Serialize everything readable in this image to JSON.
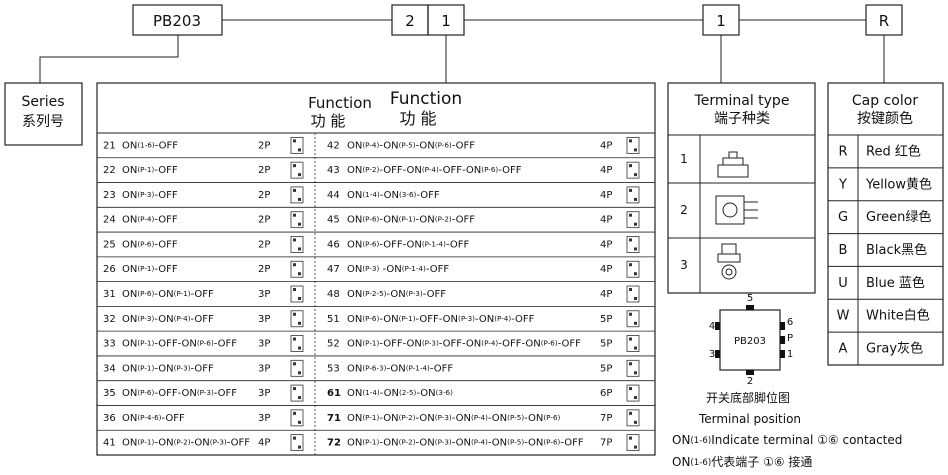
{
  "code_boxes": [
    "PB203",
    "2",
    "1",
    "1",
    "R"
  ],
  "series": {
    "en": "Series",
    "zh": "系列号"
  },
  "function_table": {
    "header": [
      {
        "en": "Function",
        "zh": "功  能"
      },
      {
        "en": "Function",
        "zh": "功  能"
      }
    ],
    "left_rows": [
      [
        "21",
        "ON(1-6)-OFF",
        "2P"
      ],
      [
        "22",
        "ON(P-1)-OFF",
        "2P"
      ],
      [
        "23",
        "ON(P-3)-OFF",
        "2P"
      ],
      [
        "24",
        "ON(P-4)-OFF",
        "2P"
      ],
      [
        "25",
        "ON(P-6)-OFF",
        "2P"
      ],
      [
        "26",
        "ON(P-1)-OFF",
        "2P"
      ],
      [
        "31",
        "ON(P-6)-ON(P-1)-OFF",
        "3P"
      ],
      [
        "32",
        "ON(P-3)-ON(P-4)-OFF",
        "3P"
      ],
      [
        "33",
        "ON(P-1)-OFF-ON(P-6)-OFF",
        "3P"
      ],
      [
        "34",
        "ON(P-1)-ON(P-3)-OFF",
        "3P"
      ],
      [
        "35",
        "ON(P-6)-OFF-ON(P-3)-OFF",
        "3P"
      ],
      [
        "36",
        "ON(P-4-6)-OFF",
        "3P"
      ],
      [
        "41",
        "ON(P-1)-ON(P-2)-ON(P-3)-OFF",
        "4P"
      ]
    ],
    "right_rows": [
      [
        "42",
        "ON(P-4)-ON(P-5)-ON(P-6)-OFF",
        "4P"
      ],
      [
        "43",
        "ON(P-2)-OFF-ON(P-4)-OFF-ON(P-6)-OFF",
        "4P"
      ],
      [
        "44",
        "ON(1-4)-ON(3-6)-OFF",
        "4P"
      ],
      [
        "45",
        "ON(P-6)-ON(P-1)-ON(P-2)-OFF",
        "4P"
      ],
      [
        "46",
        "ON(P-6)-OFF-ON(P-1-4)-OFF",
        "4P"
      ],
      [
        "47",
        "ON(P-3) -ON(P-1-4)-OFF",
        "4P"
      ],
      [
        "48",
        "ON(P-2-5)-ON(P-3)-OFF",
        "4P"
      ],
      [
        "51",
        "ON(P-6)-ON(P-1)-OFF-ON(P-3)-ON(P-4)-OFF",
        "5P"
      ],
      [
        "52",
        "ON(P-1)-OFF-ON(P-3)-OFF-ON(P-4)-OFF-ON(P-6)-OFF",
        "5P"
      ],
      [
        "53",
        "ON(P-6-3)-ON(P-1-4)-OFF",
        "5P"
      ],
      [
        "61",
        "ON(1-4)-ON(2-5)-ON(3-6)",
        "6P"
      ],
      [
        "71",
        "ON(P-1)-ON(P-2)-ON(P-3)-ON(P-4)-ON(P-5)-ON(P-6)",
        "7P"
      ],
      [
        "72",
        "ON(P-1)-ON(P-2)-ON(P-3)-ON(P-4)-ON(P-5)-ON(P-6)-OFF",
        "7P"
      ]
    ]
  },
  "terminal_type": {
    "en": "Terminal type",
    "zh": "端子种类",
    "rows": [
      "1",
      "2",
      "3"
    ]
  },
  "cap_color": {
    "en": "Cap color",
    "zh": "按键颜色",
    "rows": [
      [
        "R",
        "Red  红色"
      ],
      [
        "Y",
        "Yellow黄色"
      ],
      [
        "G",
        "Green绿色"
      ],
      [
        "B",
        "Black黑色"
      ],
      [
        "U",
        "Blue 蓝色"
      ],
      [
        "W",
        "White白色"
      ],
      [
        "A",
        "Gray灰色"
      ]
    ]
  },
  "terminal_position": {
    "chip": "PB203",
    "pins": [
      "5",
      "4",
      "6",
      "P",
      "3",
      "1",
      "2"
    ],
    "zh": "开关底部脚位图",
    "en": "Terminal position"
  },
  "notes": [
    "ON(1-6)Indicate terminal ①⑥  contacted",
    "ON(1-6)代表端子 ①⑥  接通"
  ]
}
